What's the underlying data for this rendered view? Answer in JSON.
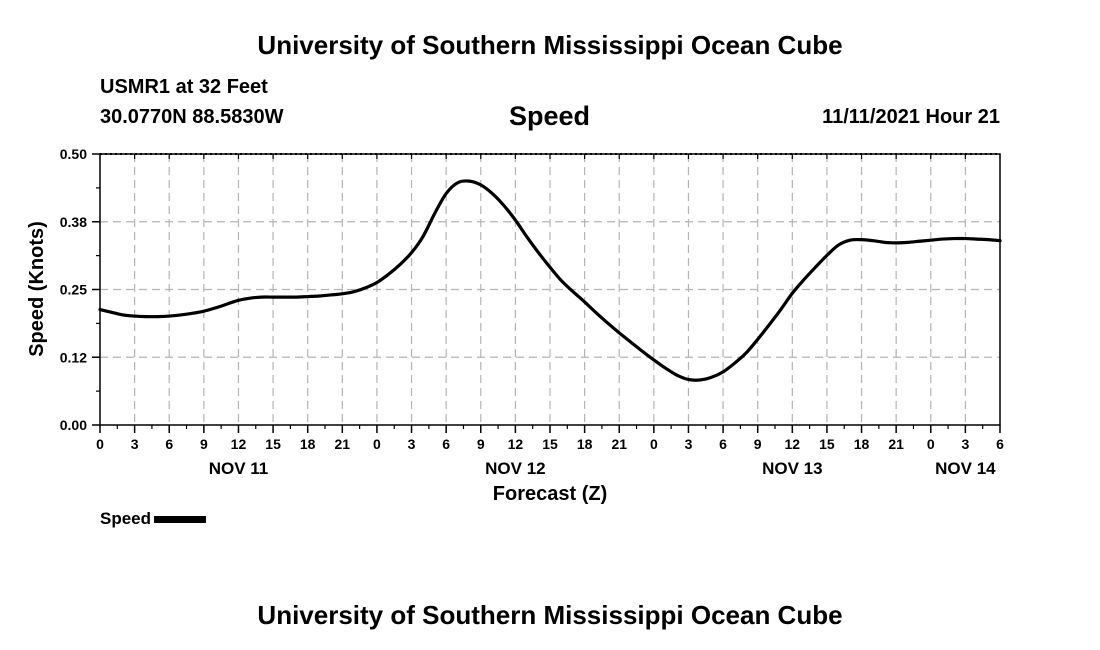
{
  "header": {
    "title": "University of Southern Mississippi Ocean Cube",
    "station": "USMR1 at 32 Feet",
    "coords": "30.0770N  88.5830W",
    "plot_title": "Speed",
    "timestamp": "11/11/2021 Hour 21"
  },
  "legend": {
    "label": "Speed"
  },
  "footer": {
    "title": "University of Southern Mississippi Ocean Cube"
  },
  "chart_data": {
    "type": "line",
    "xlabel": "Forecast (Z)",
    "ylabel": "Speed (Knots)",
    "ylim": [
      0,
      0.5
    ],
    "y_ticks": [
      "0.00",
      "0.12",
      "0.25",
      "0.38",
      "0.50"
    ],
    "y_tick_values": [
      0,
      0.125,
      0.25,
      0.375,
      0.5
    ],
    "xlim_hours": [
      0,
      78
    ],
    "x_tick_labels": [
      "0",
      "3",
      "6",
      "9",
      "12",
      "15",
      "18",
      "21",
      "0",
      "3",
      "6",
      "9",
      "12",
      "15",
      "18",
      "21",
      "0",
      "3",
      "6",
      "9",
      "12",
      "15",
      "18",
      "21",
      "0",
      "3",
      "6"
    ],
    "date_labels": [
      {
        "label": "NOV 11",
        "hour": 12
      },
      {
        "label": "NOV 12",
        "hour": 36
      },
      {
        "label": "NOV 13",
        "hour": 60
      },
      {
        "label": "NOV 14",
        "hour": 75
      }
    ],
    "grid": true,
    "legend_position": "bottom-left",
    "series": [
      {
        "name": "Speed",
        "color": "#000000",
        "x": [
          0,
          1,
          2,
          3,
          4,
          5,
          6,
          7,
          8,
          9,
          10,
          11,
          12,
          13,
          14,
          15,
          16,
          17,
          18,
          19,
          20,
          21,
          22,
          23,
          24,
          25,
          26,
          27,
          28,
          29,
          30,
          31,
          32,
          33,
          34,
          35,
          36,
          37,
          38,
          39,
          40,
          41,
          42,
          43,
          44,
          45,
          46,
          47,
          48,
          49,
          50,
          51,
          52,
          53,
          54,
          55,
          56,
          57,
          58,
          59,
          60,
          61,
          62,
          63,
          64,
          65,
          66,
          67,
          68,
          69,
          70,
          71,
          72,
          73,
          74,
          75,
          76,
          77,
          78
        ],
        "values": [
          0.213,
          0.208,
          0.203,
          0.201,
          0.2,
          0.2,
          0.201,
          0.203,
          0.206,
          0.21,
          0.216,
          0.223,
          0.23,
          0.234,
          0.236,
          0.236,
          0.236,
          0.236,
          0.237,
          0.238,
          0.24,
          0.242,
          0.246,
          0.253,
          0.263,
          0.278,
          0.296,
          0.318,
          0.348,
          0.39,
          0.427,
          0.447,
          0.45,
          0.443,
          0.427,
          0.405,
          0.378,
          0.347,
          0.318,
          0.291,
          0.266,
          0.246,
          0.227,
          0.207,
          0.188,
          0.17,
          0.153,
          0.136,
          0.12,
          0.105,
          0.092,
          0.084,
          0.083,
          0.088,
          0.098,
          0.114,
          0.133,
          0.158,
          0.185,
          0.213,
          0.243,
          0.268,
          0.291,
          0.313,
          0.332,
          0.341,
          0.342,
          0.34,
          0.337,
          0.336,
          0.337,
          0.339,
          0.341,
          0.343,
          0.344,
          0.344,
          0.343,
          0.342,
          0.34
        ]
      }
    ]
  }
}
